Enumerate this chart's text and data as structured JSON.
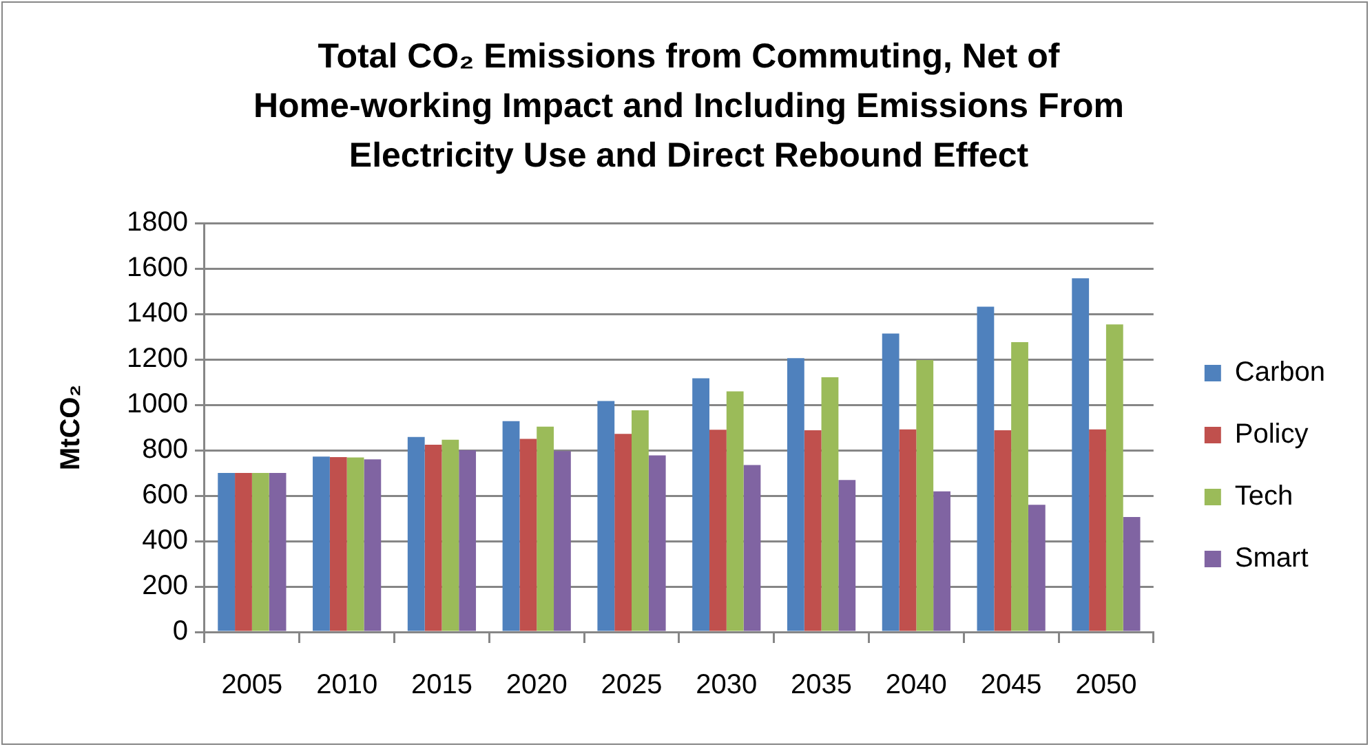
{
  "chart_data": {
    "type": "bar",
    "title": "Total CO₂ Emissions from Commuting, Net of Home-working Impact and Including Emissions From Electricity Use and Direct Rebound Effect",
    "ylabel": "MtCO₂",
    "categories": [
      "2005",
      "2010",
      "2015",
      "2020",
      "2025",
      "2030",
      "2035",
      "2040",
      "2045",
      "2050"
    ],
    "series": [
      {
        "name": "Carbon",
        "color": "#4f81bd",
        "values": [
          700,
          772,
          858,
          928,
          1017,
          1117,
          1205,
          1314,
          1432,
          1557
        ]
      },
      {
        "name": "Policy",
        "color": "#c0504d",
        "values": [
          700,
          770,
          824,
          850,
          872,
          890,
          888,
          892,
          888,
          892
        ]
      },
      {
        "name": "Tech",
        "color": "#9bbb59",
        "values": [
          700,
          768,
          846,
          904,
          976,
          1059,
          1121,
          1197,
          1276,
          1354
        ]
      },
      {
        "name": "Smart",
        "color": "#8064a2",
        "values": [
          700,
          760,
          800,
          796,
          777,
          735,
          669,
          619,
          560,
          506
        ]
      }
    ],
    "ylim": [
      0,
      1800
    ],
    "yticks": [
      0,
      200,
      400,
      600,
      800,
      1000,
      1200,
      1400,
      1600,
      1800
    ],
    "grid": "y",
    "legend": "right"
  }
}
